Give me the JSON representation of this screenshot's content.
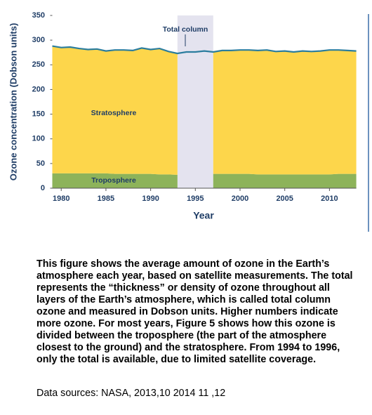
{
  "chart_data": {
    "type": "stacked-area",
    "x_label": "Year",
    "y_label": "Ozone concentration (Dobson units)",
    "x": [
      1979,
      1980,
      1981,
      1982,
      1983,
      1984,
      1985,
      1986,
      1987,
      1988,
      1989,
      1990,
      1991,
      1992,
      1993,
      1994,
      1995,
      1996,
      1997,
      1998,
      1999,
      2000,
      2001,
      2002,
      2003,
      2004,
      2005,
      2006,
      2007,
      2008,
      2009,
      2010,
      2011,
      2012,
      2013
    ],
    "series": [
      {
        "name": "Troposphere",
        "color": "#8db35a",
        "values": [
          30,
          30,
          30,
          30,
          30,
          30,
          30,
          29,
          29,
          29,
          29,
          29,
          28,
          28,
          27,
          null,
          null,
          null,
          29,
          29,
          29,
          29,
          29,
          28,
          28,
          28,
          28,
          28,
          28,
          28,
          28,
          28,
          29,
          29,
          29
        ]
      },
      {
        "name": "Stratosphere",
        "color": "#fdd64b",
        "values": [
          258,
          255,
          256,
          253,
          251,
          252,
          248,
          251,
          251,
          250,
          255,
          252,
          255,
          249,
          246,
          null,
          null,
          null,
          247,
          250,
          250,
          251,
          251,
          251,
          252,
          249,
          250,
          248,
          250,
          249,
          250,
          252,
          251,
          250,
          249
        ]
      },
      {
        "name": "Total column",
        "color": "#2b7d9e",
        "axis": "line",
        "values": [
          288,
          285,
          286,
          283,
          281,
          282,
          278,
          280,
          280,
          279,
          284,
          281,
          283,
          277,
          273,
          276,
          276,
          278,
          276,
          279,
          279,
          280,
          280,
          279,
          280,
          277,
          278,
          276,
          278,
          277,
          278,
          280,
          280,
          279,
          278
        ]
      }
    ],
    "xlim": [
      1979,
      2013
    ],
    "xticks": [
      1980,
      1985,
      1990,
      1995,
      2000,
      2005,
      2010
    ],
    "ylim": [
      0,
      350
    ],
    "yticks": [
      0,
      50,
      100,
      150,
      200,
      250,
      300,
      350
    ],
    "gap_color": "#e4e3ef"
  },
  "caption": "This figure shows the average amount of ozone in the Earth’s atmosphere each year, based on satellite measurements. The total represents the “thickness” or density of ozone throughout all layers of the Earth’s atmosphere, which is called total column ozone and measured in Dobson units. Higher numbers indicate more ozone. For most years, Figure 5 shows how this ozone is divided between the troposphere (the part of the atmosphere closest to the ground) and the stratosphere. From 1994 to 1996, only the total is available, due to limited satellite coverage.",
  "sources": "Data sources: NASA, 2013,10 2014 11 ,12"
}
